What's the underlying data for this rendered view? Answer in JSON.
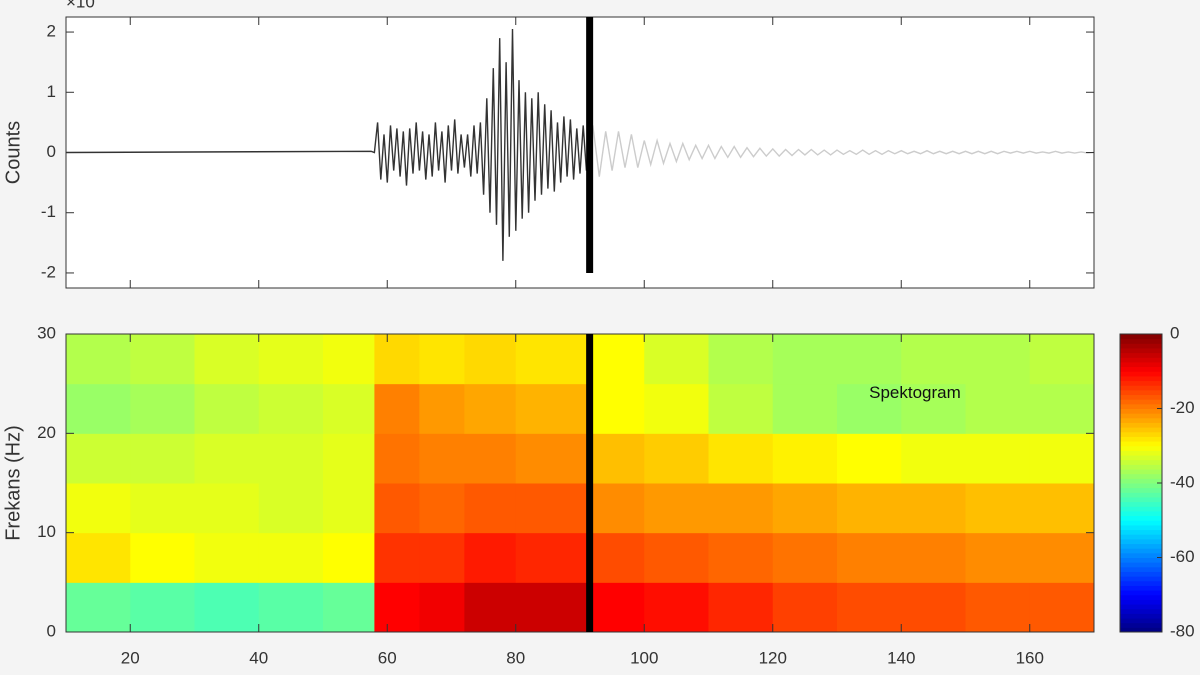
{
  "chart_data": [
    {
      "type": "line",
      "ylabel": "Counts",
      "exponent_label": "×10",
      "xlim": [
        10,
        170
      ],
      "xticks": [
        20,
        40,
        60,
        80,
        100,
        120,
        140,
        160
      ],
      "show_xtick_labels": false,
      "ylim": [
        -2.25,
        2.25
      ],
      "yticks": [
        -2,
        -1,
        0,
        1,
        2
      ],
      "cursor_x": 91.5,
      "series": [
        {
          "color": "#333333",
          "x": [
            10,
            57.5,
            58,
            58.5,
            59,
            59.5,
            60,
            60.5,
            61,
            61.5,
            62,
            62.5,
            63,
            63.5,
            64,
            64.5,
            65,
            65.5,
            66,
            66.5,
            67,
            67.5,
            68,
            68.5,
            69,
            69.5,
            70,
            70.5,
            71,
            71.5,
            72,
            72.5,
            73,
            73.5,
            74,
            74.5,
            75,
            75.5,
            76,
            76.5,
            77,
            77.5,
            78,
            78.5,
            79,
            79.5,
            80,
            80.5,
            81,
            81.5,
            82,
            82.5,
            83,
            83.5,
            84,
            84.5,
            85,
            85.5,
            86,
            86.5,
            87,
            87.5,
            88,
            88.5,
            89,
            89.5,
            90,
            90.5,
            91,
            91.5
          ],
          "values": [
            0,
            0.02,
            0,
            0.5,
            -0.45,
            0.3,
            -0.5,
            0.45,
            -0.3,
            0.4,
            -0.4,
            0.35,
            -0.55,
            0.4,
            -0.35,
            0.5,
            -0.3,
            0.35,
            -0.45,
            0.3,
            -0.4,
            0.5,
            -0.3,
            0.35,
            -0.5,
            0.45,
            -0.3,
            0.55,
            -0.35,
            0.3,
            -0.25,
            0.3,
            -0.4,
            0.45,
            -0.35,
            0.5,
            -0.7,
            0.9,
            -1.0,
            1.4,
            -1.2,
            1.9,
            -1.8,
            1.5,
            -1.4,
            2.05,
            -1.3,
            1.2,
            -1.1,
            1.0,
            -1.0,
            0.9,
            -0.8,
            1.0,
            -0.7,
            0.8,
            -0.6,
            0.7,
            -0.65,
            0.5,
            -0.5,
            0.6,
            -0.4,
            0.55,
            -0.45,
            0.4,
            -0.35,
            0.45,
            -0.3,
            0.1
          ]
        },
        {
          "color": "#cccccc",
          "x": [
            91.5,
            92,
            93,
            94,
            95,
            96,
            97,
            98,
            99,
            100,
            101,
            102,
            103,
            104,
            105,
            106,
            107,
            108,
            109,
            110,
            111,
            112,
            113,
            114,
            115,
            116,
            117,
            118,
            119,
            120,
            121,
            122,
            123,
            124,
            125,
            126,
            127,
            128,
            129,
            130,
            131,
            132,
            133,
            134,
            135,
            136,
            137,
            138,
            139,
            140,
            141,
            142,
            143,
            144,
            145,
            146,
            147,
            148,
            149,
            150,
            151,
            152,
            153,
            154,
            155,
            156,
            157,
            158,
            159,
            160,
            161,
            162,
            163,
            164,
            165,
            166,
            167,
            168,
            169,
            170
          ],
          "values": [
            0.1,
            0.45,
            -0.4,
            0.35,
            -0.3,
            0.35,
            -0.25,
            0.3,
            -0.25,
            0.2,
            -0.2,
            0.2,
            -0.18,
            0.15,
            -0.15,
            0.15,
            -0.12,
            0.12,
            -0.1,
            0.12,
            -0.1,
            0.1,
            -0.08,
            0.1,
            -0.08,
            0.08,
            -0.07,
            0.07,
            -0.06,
            0.06,
            -0.06,
            0.05,
            -0.05,
            0.05,
            -0.04,
            0.05,
            -0.04,
            0.04,
            -0.04,
            0.04,
            -0.03,
            0.03,
            -0.03,
            0.04,
            -0.03,
            0.03,
            -0.03,
            0.03,
            -0.02,
            0.03,
            -0.02,
            0.02,
            -0.02,
            0.03,
            -0.02,
            0.02,
            -0.02,
            0.02,
            -0.02,
            0.02,
            -0.02,
            0.02,
            -0.02,
            0.02,
            -0.02,
            0.02,
            -0.01,
            0.02,
            -0.01,
            0.02,
            -0.01,
            0.01,
            -0.01,
            0.02,
            -0.01,
            0.01,
            -0.01,
            0.01,
            -0.01,
            0
          ]
        }
      ]
    },
    {
      "type": "heatmap",
      "ylabel": "Frekans (Hz)",
      "annotation": "Spektogram",
      "annotation_xy": [
        135,
        24
      ],
      "xlim": [
        10,
        170
      ],
      "xticks": [
        20,
        40,
        60,
        80,
        100,
        120,
        140,
        160
      ],
      "show_xtick_labels": true,
      "ylim": [
        0,
        30
      ],
      "yticks": [
        0,
        10,
        20,
        30
      ],
      "cursor_x": 91.5,
      "colormap": "jet",
      "clim": [
        -80,
        0
      ],
      "colorbar_ticks": [
        0,
        -20,
        -40,
        -60,
        -80
      ],
      "x_edges": [
        10,
        20,
        30,
        40,
        50,
        58,
        65,
        72,
        80,
        91.5,
        100,
        110,
        120,
        130,
        140,
        150,
        160,
        170
      ],
      "y_edges": [
        0,
        5,
        10,
        15,
        20,
        25,
        30
      ],
      "values": [
        [
          -42,
          -43,
          -44,
          -43,
          -42,
          -10,
          -9,
          -6,
          -6,
          -10,
          -11,
          -13,
          -15,
          -16,
          -16,
          -17,
          -17
        ],
        [
          -28,
          -30,
          -31,
          -31,
          -30,
          -14,
          -14,
          -12,
          -13,
          -16,
          -17,
          -18,
          -19,
          -20,
          -20,
          -21,
          -21
        ],
        [
          -31,
          -32,
          -32,
          -33,
          -32,
          -17,
          -18,
          -17,
          -17,
          -21,
          -22,
          -22,
          -23,
          -24,
          -24,
          -25,
          -25
        ],
        [
          -34,
          -34,
          -33,
          -33,
          -32,
          -19,
          -20,
          -20,
          -21,
          -25,
          -26,
          -28,
          -29,
          -30,
          -31,
          -31,
          -31
        ],
        [
          -38,
          -37,
          -35,
          -34,
          -33,
          -20,
          -22,
          -23,
          -24,
          -30,
          -31,
          -35,
          -37,
          -38,
          -37,
          -36,
          -36
        ],
        [
          -36,
          -35,
          -33,
          -32,
          -31,
          -27,
          -28,
          -27,
          -28,
          -30,
          -33,
          -36,
          -37,
          -37,
          -36,
          -36,
          -35
        ]
      ]
    }
  ]
}
